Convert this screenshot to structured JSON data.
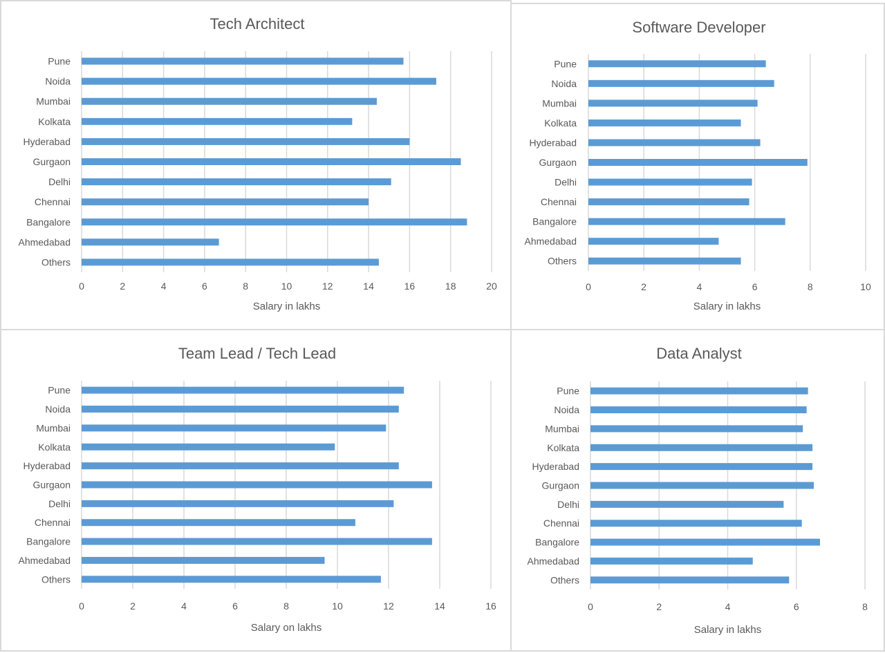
{
  "colors": {
    "bar": "#5b9bd5",
    "text": "#595959",
    "grid": "#d9d9d9"
  },
  "chart_data": [
    {
      "type": "bar",
      "orientation": "horizontal",
      "title": "Tech Architect",
      "xlabel": "Salary in lakhs",
      "ylabel": "",
      "xlim": [
        0,
        20
      ],
      "xticks": [
        "0",
        "2",
        "4",
        "6",
        "8",
        "10",
        "12",
        "14",
        "16",
        "18",
        "20"
      ],
      "grid": true,
      "categories": [
        "Pune",
        "Noida",
        "Mumbai",
        "Kolkata",
        "Hyderabad",
        "Gurgaon",
        "Delhi",
        "Chennai",
        "Bangalore",
        "Ahmedabad",
        "Others"
      ],
      "values": [
        15.7,
        17.3,
        14.4,
        13.2,
        16.0,
        18.5,
        15.1,
        14.0,
        18.8,
        6.7,
        14.5
      ]
    },
    {
      "type": "bar",
      "orientation": "horizontal",
      "title": "Software Developer",
      "xlabel": "Salary in lakhs",
      "ylabel": "",
      "xlim": [
        0,
        10
      ],
      "xticks": [
        "0",
        "2",
        "4",
        "6",
        "8",
        "10"
      ],
      "grid": true,
      "categories": [
        "Pune",
        "Noida",
        "Mumbai",
        "Kolkata",
        "Hyderabad",
        "Gurgaon",
        "Delhi",
        "Chennai",
        "Bangalore",
        "Ahmedabad",
        "Others"
      ],
      "values": [
        6.4,
        6.7,
        6.1,
        5.5,
        6.2,
        7.9,
        5.9,
        5.8,
        7.1,
        4.7,
        5.5
      ]
    },
    {
      "type": "bar",
      "orientation": "horizontal",
      "title": "Team Lead / Tech Lead",
      "xlabel": "Salary on lakhs",
      "ylabel": "",
      "xlim": [
        0,
        16
      ],
      "xticks": [
        "0",
        "2",
        "4",
        "6",
        "8",
        "10",
        "12",
        "14",
        "16"
      ],
      "grid": true,
      "categories": [
        "Pune",
        "Noida",
        "Mumbai",
        "Kolkata",
        "Hyderabad",
        "Gurgaon",
        "Delhi",
        "Chennai",
        "Bangalore",
        "Ahmedabad",
        "Others"
      ],
      "values": [
        12.6,
        12.4,
        11.9,
        9.9,
        12.4,
        13.7,
        12.2,
        10.7,
        13.7,
        9.5,
        11.7
      ]
    },
    {
      "type": "bar",
      "orientation": "horizontal",
      "title": "Data Analyst",
      "xlabel": "Salary in lakhs",
      "ylabel": "",
      "xlim": [
        0,
        8
      ],
      "xticks": [
        "0",
        "2",
        "4",
        "6",
        "8"
      ],
      "grid": true,
      "categories": [
        "Pune",
        "Noida",
        "Mumbai",
        "Kolkata",
        "Hyderabad",
        "Gurgaon",
        "Delhi",
        "Chennai",
        "Bangalore",
        "Ahmedabad",
        "Others"
      ],
      "values": [
        6.34,
        6.3,
        6.19,
        6.47,
        6.47,
        6.51,
        5.63,
        6.16,
        6.69,
        4.73,
        5.79
      ]
    }
  ]
}
